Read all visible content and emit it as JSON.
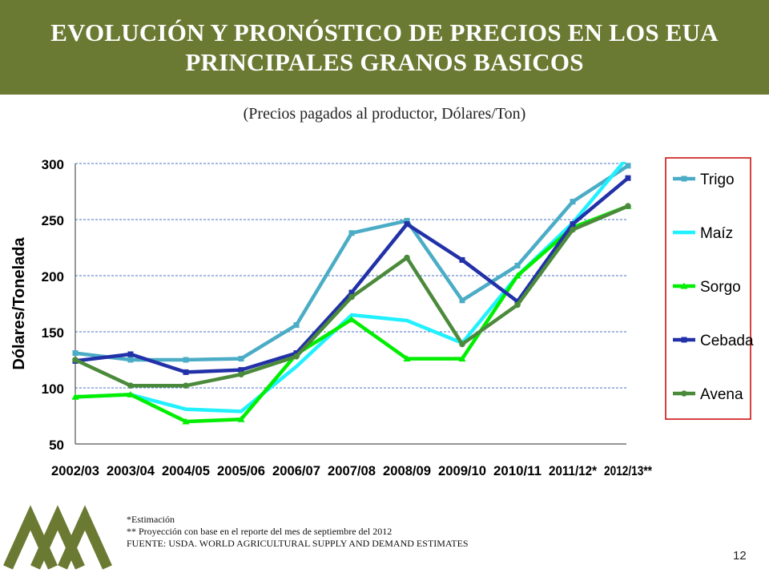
{
  "header": {
    "title_line1": "EVOLUCIÓN Y PRONÓSTICO DE PRECIOS EN LOS EUA",
    "title_line2": "PRINCIPALES GRANOS BASICOS",
    "background_color": "#6b7a33"
  },
  "subtitle": "(Precios pagados al productor, Dólares/Ton)",
  "footnotes": {
    "estimate": "*Estimación",
    "projection": "** Proyección con base en el reporte  del mes de septiembre del 2012",
    "source": "FUENTE: USDA. WORLD AGRICULTURAL SUPPLY AND DEMAND ESTIMATES"
  },
  "page_number": "12",
  "logo": {
    "icon": "mountain-logo-icon",
    "color": "#6b7a33"
  },
  "chart_data": {
    "type": "line",
    "title": "",
    "xlabel": "",
    "ylabel": "Dólares/Tonelada",
    "ylim": [
      50,
      300
    ],
    "yticks": [
      50,
      100,
      150,
      200,
      250,
      300
    ],
    "grid": true,
    "legend_position": "right",
    "categories": [
      "2002/03",
      "2003/04",
      "2004/05",
      "2005/06",
      "2006/07",
      "2007/08",
      "2008/09",
      "2009/10",
      "2010/11",
      "2011/12*",
      "2012/13**"
    ],
    "series": [
      {
        "name": "Trigo",
        "color": "#4bacc6",
        "marker": "square",
        "values": [
          131,
          125,
          125,
          126,
          156,
          238,
          249,
          178,
          209,
          266,
          298
        ]
      },
      {
        "name": "Maíz",
        "color": "#21f0ff",
        "marker": "none",
        "values": [
          92,
          94,
          81,
          79,
          119,
          165,
          160,
          140,
          200,
          247,
          306
        ]
      },
      {
        "name": "Sorgo",
        "color": "#00ee00",
        "marker": "triangle",
        "values": [
          92,
          94,
          70,
          72,
          130,
          161,
          126,
          126,
          200,
          243,
          262
        ]
      },
      {
        "name": "Cebada",
        "color": "#2231a8",
        "marker": "square",
        "values": [
          124,
          130,
          114,
          116,
          131,
          185,
          246,
          214,
          177,
          246,
          287
        ]
      },
      {
        "name": "Avena",
        "color": "#4a8a3a",
        "marker": "circle",
        "values": [
          125,
          102,
          102,
          112,
          128,
          181,
          216,
          139,
          174,
          241,
          262
        ]
      }
    ]
  }
}
